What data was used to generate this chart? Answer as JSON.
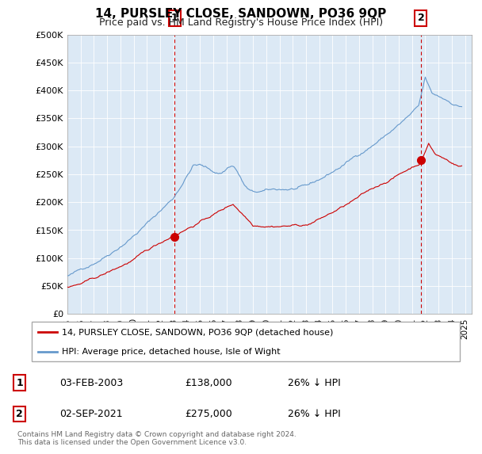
{
  "title": "14, PURSLEY CLOSE, SANDOWN, PO36 9QP",
  "subtitle": "Price paid vs. HM Land Registry's House Price Index (HPI)",
  "ylabel_ticks": [
    "£0",
    "£50K",
    "£100K",
    "£150K",
    "£200K",
    "£250K",
    "£300K",
    "£350K",
    "£400K",
    "£450K",
    "£500K"
  ],
  "ytick_values": [
    0,
    50000,
    100000,
    150000,
    200000,
    250000,
    300000,
    350000,
    400000,
    450000,
    500000
  ],
  "ylim": [
    0,
    500000
  ],
  "xlim_start": 1995.0,
  "xlim_end": 2025.5,
  "background_color": "#dce9f5",
  "plot_bg_color": "#dce9f5",
  "legend_label_red": "14, PURSLEY CLOSE, SANDOWN, PO36 9QP (detached house)",
  "legend_label_blue": "HPI: Average price, detached house, Isle of Wight",
  "footnote": "Contains HM Land Registry data © Crown copyright and database right 2024.\nThis data is licensed under the Open Government Licence v3.0.",
  "sale1_date": "03-FEB-2003",
  "sale1_price": "£138,000",
  "sale1_hpi": "26% ↓ HPI",
  "sale2_date": "02-SEP-2021",
  "sale2_price": "£275,000",
  "sale2_hpi": "26% ↓ HPI",
  "red_color": "#cc0000",
  "blue_color": "#6699cc",
  "marker1_x": 2003.09,
  "marker1_y": 138000,
  "marker2_x": 2021.67,
  "marker2_y": 275000
}
